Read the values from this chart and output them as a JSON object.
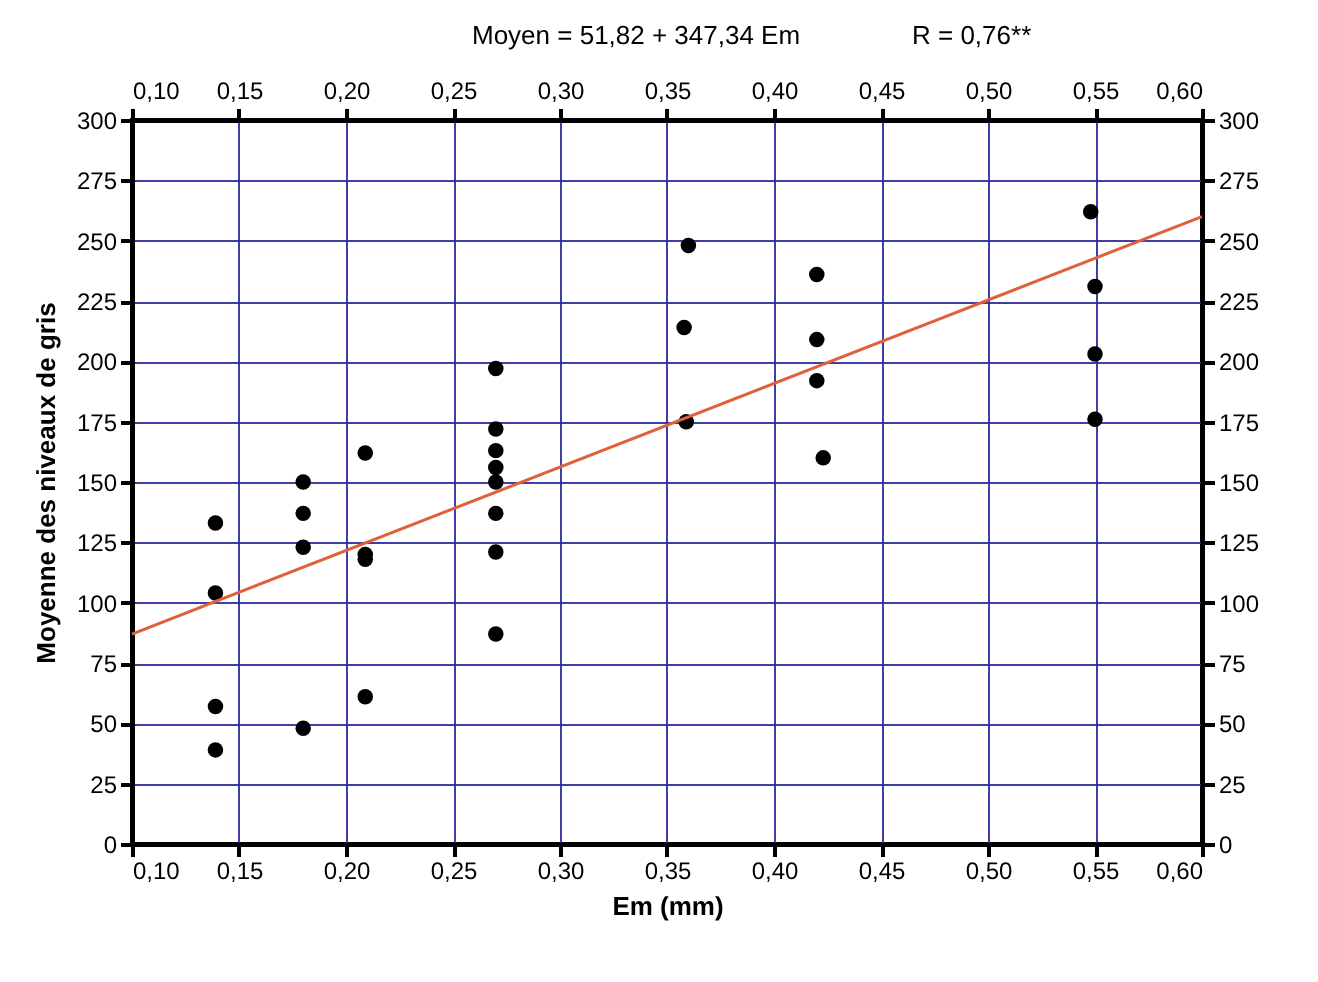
{
  "chart_data": {
    "type": "scatter",
    "title": "Moyen = 51,82 + 347,34 Em",
    "annotations": [
      "R = 0,76**"
    ],
    "xlabel": "Em (mm)",
    "ylabel": "Moyenne des niveaux de gris",
    "xlim": [
      0.1,
      0.6
    ],
    "xticks": [
      {
        "value": 0.1,
        "label": "0,10"
      },
      {
        "value": 0.15,
        "label": "0,15"
      },
      {
        "value": 0.2,
        "label": "0,20"
      },
      {
        "value": 0.25,
        "label": "0,25"
      },
      {
        "value": 0.3,
        "label": "0,30"
      },
      {
        "value": 0.35,
        "label": "0,35"
      },
      {
        "value": 0.4,
        "label": "0,40"
      },
      {
        "value": 0.45,
        "label": "0,45"
      },
      {
        "value": 0.5,
        "label": "0,50"
      },
      {
        "value": 0.55,
        "label": "0,55"
      },
      {
        "value": 0.6,
        "label": "0,60"
      }
    ],
    "x2lim": [
      0.1,
      0.6
    ],
    "x2ticks": [
      {
        "value": 0.1,
        "label": "0,10"
      },
      {
        "value": 0.15,
        "label": "0,15"
      },
      {
        "value": 0.2,
        "label": "0,20"
      },
      {
        "value": 0.25,
        "label": "0,25"
      },
      {
        "value": 0.3,
        "label": "0,30"
      },
      {
        "value": 0.35,
        "label": "0,35"
      },
      {
        "value": 0.4,
        "label": "0,40"
      },
      {
        "value": 0.45,
        "label": "0,45"
      },
      {
        "value": 0.5,
        "label": "0,50"
      },
      {
        "value": 0.55,
        "label": "0,55"
      },
      {
        "value": 0.6,
        "label": "0,60"
      }
    ],
    "ylim": [
      0,
      300
    ],
    "yticks": [
      0,
      25,
      50,
      75,
      100,
      125,
      150,
      175,
      200,
      225,
      250,
      275,
      300
    ],
    "y2lim": [
      0,
      300
    ],
    "y2ticks": [
      0,
      25,
      50,
      75,
      100,
      125,
      150,
      175,
      200,
      225,
      250,
      275,
      300
    ],
    "grid": true,
    "series": [
      {
        "color": "#000000",
        "marker": "circle",
        "x": [
          0.139,
          0.139,
          0.139,
          0.139,
          0.18,
          0.18,
          0.18,
          0.18,
          0.209,
          0.209,
          0.209,
          0.209,
          0.27,
          0.27,
          0.27,
          0.27,
          0.27,
          0.27,
          0.27,
          0.27,
          0.36,
          0.358,
          0.359,
          0.42,
          0.42,
          0.42,
          0.423,
          0.548,
          0.55,
          0.55,
          0.55
        ],
        "values": [
          133,
          104,
          57,
          39,
          150,
          137,
          123,
          48,
          162,
          120,
          118,
          61,
          197,
          172,
          163,
          156,
          150,
          137,
          121,
          87,
          248,
          214,
          175,
          236,
          209,
          192,
          160,
          262,
          231,
          203,
          176
        ]
      },
      {
        "type": "line",
        "color": "#e0603a",
        "line_style": "solid",
        "x": [
          0.1,
          0.6
        ],
        "values": [
          87,
          260
        ]
      }
    ]
  }
}
